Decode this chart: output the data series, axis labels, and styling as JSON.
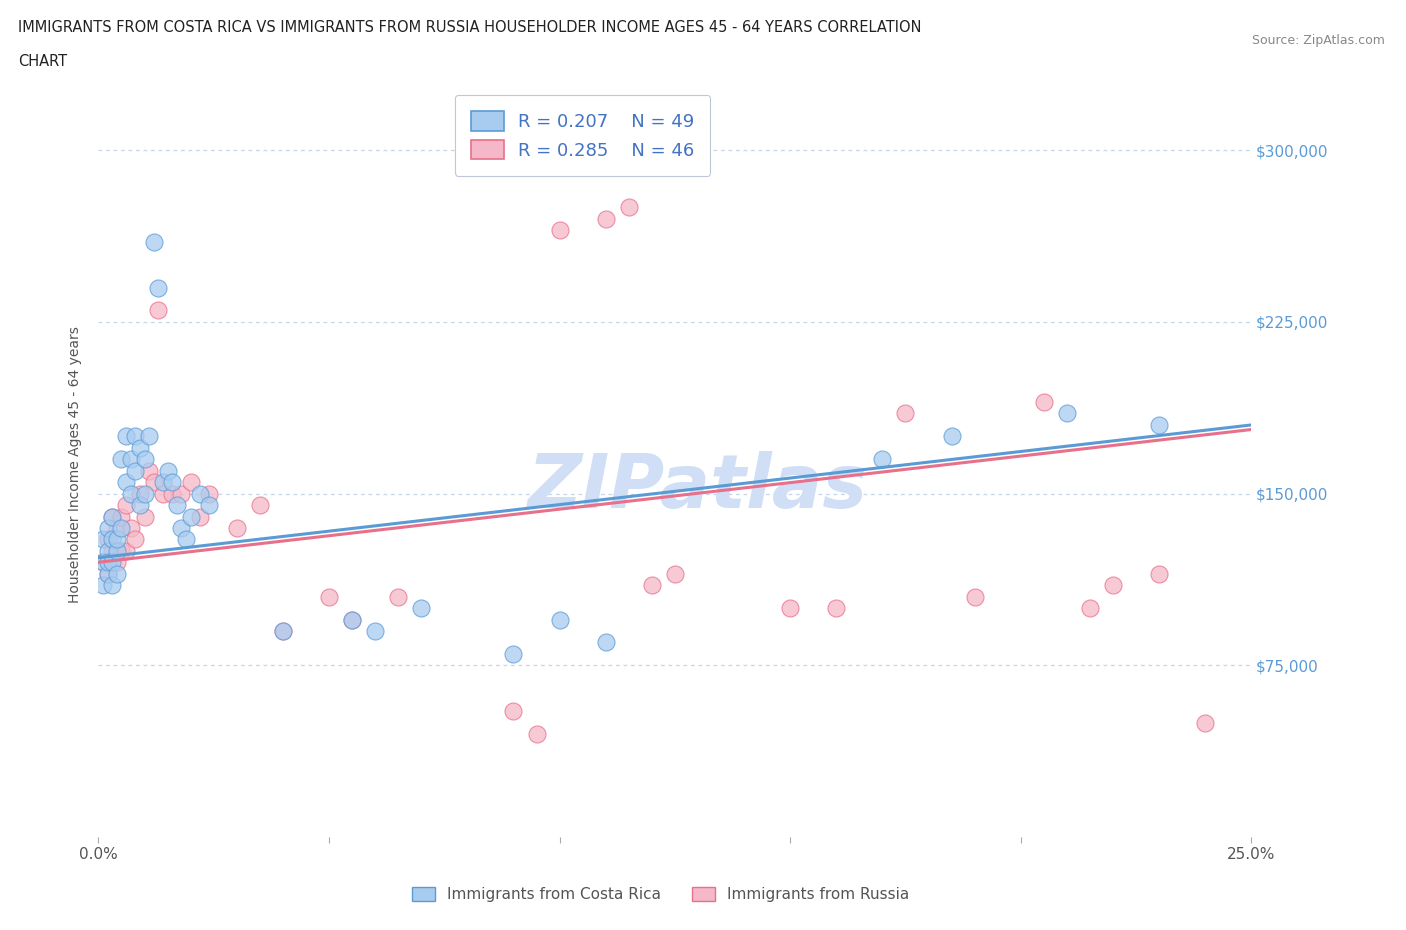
{
  "title_line1": "IMMIGRANTS FROM COSTA RICA VS IMMIGRANTS FROM RUSSIA HOUSEHOLDER INCOME AGES 45 - 64 YEARS CORRELATION",
  "title_line2": "CHART",
  "source_text": "Source: ZipAtlas.com",
  "ylabel": "Householder Income Ages 45 - 64 years",
  "xlim": [
    0.0,
    0.25
  ],
  "ylim": [
    0,
    325000
  ],
  "r_costa_rica": 0.207,
  "n_costa_rica": 49,
  "r_russia": 0.285,
  "n_russia": 46,
  "color_costa_rica": "#A8CCF0",
  "color_russia": "#F5B8C8",
  "line_color_costa_rica": "#5B9BD5",
  "line_color_russia": "#E8708A",
  "background_color": "#FFFFFF",
  "grid_color": "#C8D4E8",
  "watermark_color": "#D0DFF5",
  "legend_label_costa_rica": "Immigrants from Costa Rica",
  "legend_label_russia": "Immigrants from Russia",
  "costa_rica_x": [
    0.001,
    0.001,
    0.001,
    0.002,
    0.002,
    0.002,
    0.002,
    0.003,
    0.003,
    0.003,
    0.003,
    0.004,
    0.004,
    0.004,
    0.005,
    0.005,
    0.006,
    0.006,
    0.007,
    0.007,
    0.008,
    0.008,
    0.009,
    0.009,
    0.01,
    0.01,
    0.011,
    0.012,
    0.013,
    0.014,
    0.015,
    0.016,
    0.017,
    0.018,
    0.019,
    0.02,
    0.022,
    0.024,
    0.04,
    0.055,
    0.06,
    0.07,
    0.09,
    0.1,
    0.11,
    0.17,
    0.185,
    0.21,
    0.23
  ],
  "costa_rica_y": [
    120000,
    110000,
    130000,
    125000,
    115000,
    135000,
    120000,
    110000,
    130000,
    140000,
    120000,
    125000,
    115000,
    130000,
    165000,
    135000,
    175000,
    155000,
    165000,
    150000,
    175000,
    160000,
    170000,
    145000,
    165000,
    150000,
    175000,
    260000,
    240000,
    155000,
    160000,
    155000,
    145000,
    135000,
    130000,
    140000,
    150000,
    145000,
    90000,
    95000,
    90000,
    100000,
    80000,
    95000,
    85000,
    165000,
    175000,
    185000,
    180000
  ],
  "russia_x": [
    0.001,
    0.002,
    0.002,
    0.003,
    0.003,
    0.004,
    0.004,
    0.005,
    0.005,
    0.006,
    0.006,
    0.007,
    0.008,
    0.009,
    0.01,
    0.011,
    0.012,
    0.013,
    0.014,
    0.016,
    0.018,
    0.02,
    0.022,
    0.024,
    0.03,
    0.035,
    0.04,
    0.05,
    0.055,
    0.065,
    0.09,
    0.095,
    0.1,
    0.11,
    0.115,
    0.12,
    0.125,
    0.15,
    0.16,
    0.175,
    0.19,
    0.205,
    0.215,
    0.22,
    0.23,
    0.24
  ],
  "russia_y": [
    120000,
    115000,
    130000,
    125000,
    140000,
    120000,
    135000,
    125000,
    140000,
    125000,
    145000,
    135000,
    130000,
    150000,
    140000,
    160000,
    155000,
    230000,
    150000,
    150000,
    150000,
    155000,
    140000,
    150000,
    135000,
    145000,
    90000,
    105000,
    95000,
    105000,
    55000,
    45000,
    265000,
    270000,
    275000,
    110000,
    115000,
    100000,
    100000,
    185000,
    105000,
    190000,
    100000,
    110000,
    115000,
    50000
  ],
  "line_cr_x0": 0.0,
  "line_cr_y0": 122000,
  "line_cr_x1": 0.25,
  "line_cr_y1": 180000,
  "line_ru_x0": 0.0,
  "line_ru_y0": 120000,
  "line_ru_x1": 0.25,
  "line_ru_y1": 178000
}
